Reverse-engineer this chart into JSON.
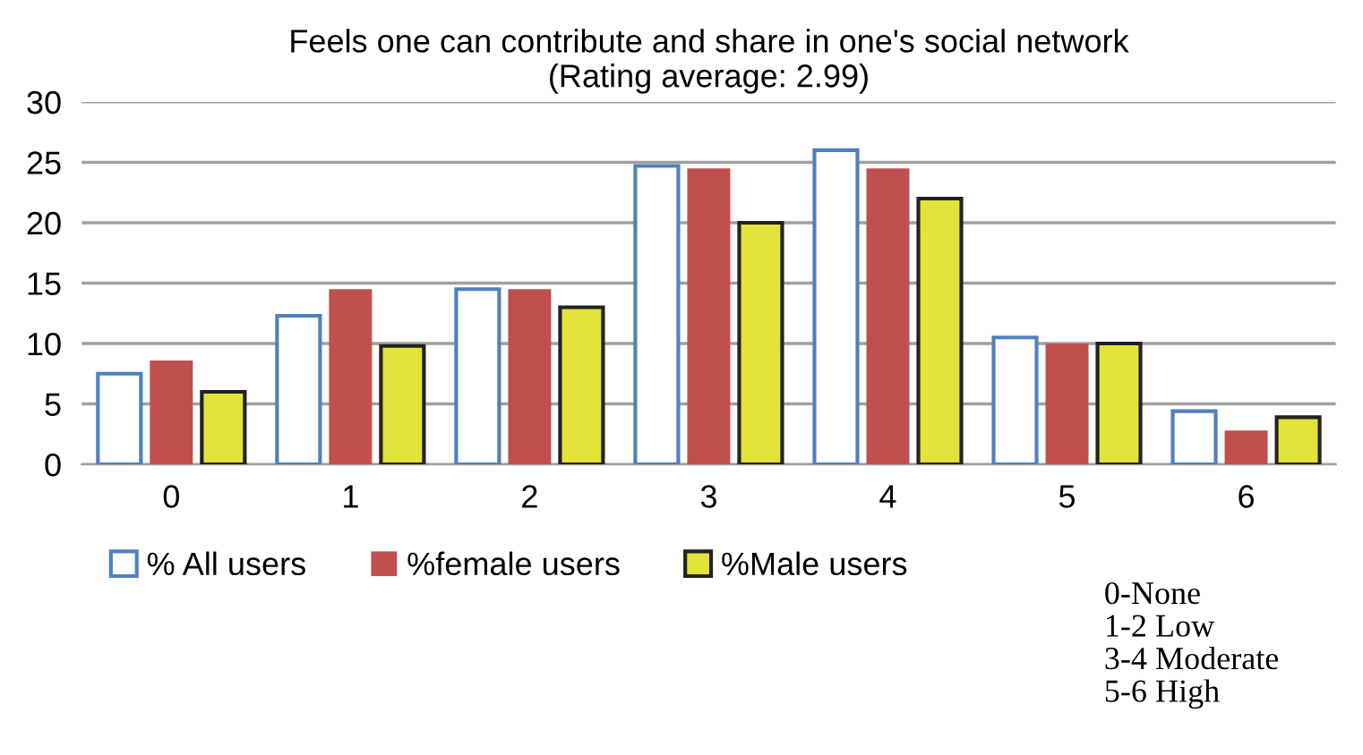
{
  "chart_data": {
    "type": "bar",
    "title": "Feels one can contribute and share in one's social network\n(Rating average: 2.99)",
    "categories": [
      "0",
      "1",
      "2",
      "3",
      "4",
      "5",
      "6"
    ],
    "series": [
      {
        "name": "% All users",
        "color": "#ffffff",
        "values": [
          7.5,
          12.3,
          14.5,
          24.7,
          26.0,
          10.5,
          4.4
        ]
      },
      {
        "name": "%female users",
        "color": "#c0504d",
        "values": [
          8.6,
          14.5,
          14.5,
          24.5,
          24.5,
          10,
          2.8
        ]
      },
      {
        "name": "%Male users",
        "color": "#e3e33a",
        "values": [
          6.0,
          9.8,
          13.0,
          20,
          22.0,
          10,
          3.9
        ]
      }
    ],
    "ylim": [
      0,
      30
    ],
    "yticks": [
      0,
      5,
      10,
      15,
      20,
      25,
      30
    ],
    "grid": "y",
    "legend": "bottom",
    "annotations": [
      "0-None\n1-2 Low\n3-4 Moderate\n5-6 High"
    ]
  }
}
